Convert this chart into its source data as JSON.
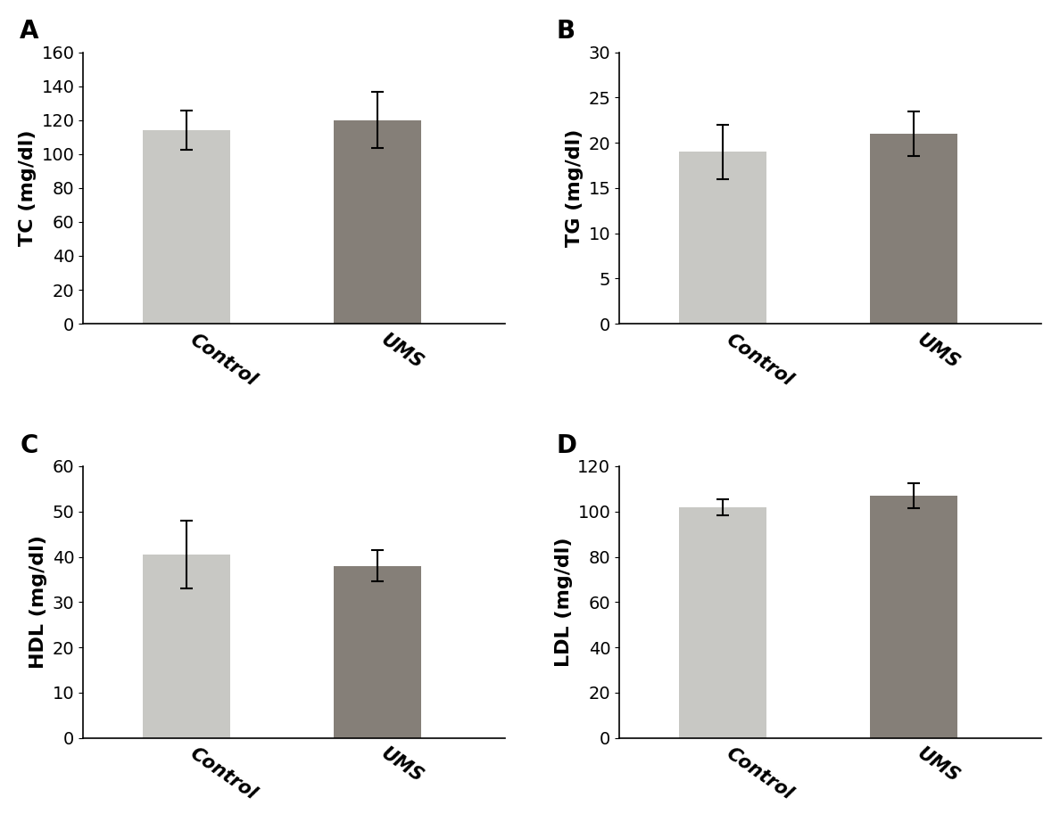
{
  "panels": [
    {
      "label": "A",
      "ylabel": "TC (mg/dl)",
      "ylim": [
        0,
        160
      ],
      "yticks": [
        0,
        20,
        40,
        60,
        80,
        100,
        120,
        140,
        160
      ],
      "categories": [
        "Control",
        "UMS"
      ],
      "values": [
        114.0,
        120.0
      ],
      "errors": [
        11.5,
        16.5
      ],
      "bar_colors": [
        "#c8c8c4",
        "#857f78"
      ]
    },
    {
      "label": "B",
      "ylabel": "TG (mg/dl)",
      "ylim": [
        0,
        30
      ],
      "yticks": [
        0,
        5,
        10,
        15,
        20,
        25,
        30
      ],
      "categories": [
        "Control",
        "UMS"
      ],
      "values": [
        19.0,
        21.0
      ],
      "errors": [
        3.0,
        2.5
      ],
      "bar_colors": [
        "#c8c8c4",
        "#857f78"
      ]
    },
    {
      "label": "C",
      "ylabel": "HDL (mg/dl)",
      "ylim": [
        0,
        60
      ],
      "yticks": [
        0,
        10,
        20,
        30,
        40,
        50,
        60
      ],
      "categories": [
        "Control",
        "UMS"
      ],
      "values": [
        40.5,
        38.0
      ],
      "errors": [
        7.5,
        3.5
      ],
      "bar_colors": [
        "#c8c8c4",
        "#857f78"
      ]
    },
    {
      "label": "D",
      "ylabel": "LDL (mg/dl)",
      "ylim": [
        0,
        120
      ],
      "yticks": [
        0,
        20,
        40,
        60,
        80,
        100,
        120
      ],
      "categories": [
        "Control",
        "UMS"
      ],
      "values": [
        102.0,
        107.0
      ],
      "errors": [
        3.5,
        5.5
      ],
      "bar_colors": [
        "#c8c8c4",
        "#857f78"
      ]
    }
  ],
  "label_fontsize": 20,
  "tick_fontsize": 14,
  "ylabel_fontsize": 16,
  "xlabel_fontsize": 15,
  "bar_width": 0.55,
  "x_positions": [
    1.0,
    2.2
  ],
  "xlim": [
    0.35,
    3.0
  ],
  "background_color": "#ffffff",
  "capsize": 5,
  "ecolor": "black",
  "elinewidth": 1.5,
  "ecapthick": 1.5,
  "xtick_rotation": -35,
  "spine_linewidth": 1.2
}
